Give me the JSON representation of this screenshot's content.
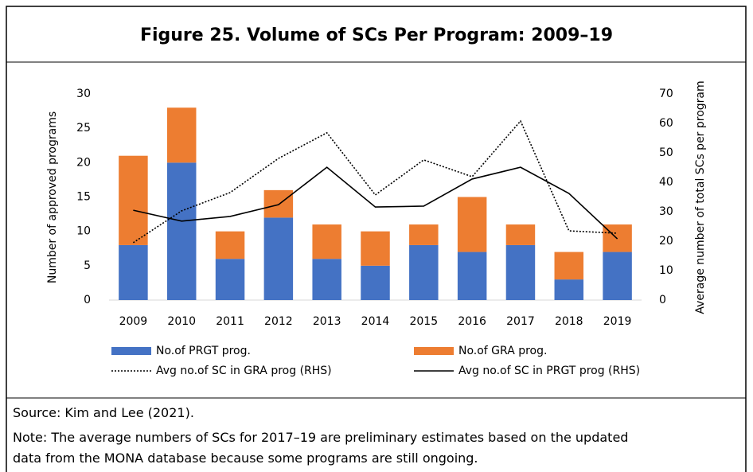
{
  "chart_data": {
    "type": "bar",
    "stacked": true,
    "title": "Figure 25. Volume of SCs Per Program: 2009–19",
    "categories": [
      "2009",
      "2010",
      "2011",
      "2012",
      "2013",
      "2014",
      "2015",
      "2016",
      "2017",
      "2018",
      "2019"
    ],
    "series": [
      {
        "name": "No.of PRGT prog.",
        "color": "#4472c4",
        "values": [
          8,
          20,
          6,
          12,
          6,
          5,
          8,
          7,
          8,
          3,
          7
        ]
      },
      {
        "name": "No.of GRA prog.",
        "color": "#ed7d31",
        "values": [
          13,
          8,
          4,
          4,
          5,
          5,
          3,
          8,
          3,
          4,
          4
        ]
      },
      {
        "name": "Avg no.of SC in GRA prog (RHS)",
        "type": "line",
        "style": "dotted",
        "axis": "y2",
        "color": "#000000",
        "values": [
          19.5,
          30.3,
          36.5,
          48.1,
          56.8,
          35.7,
          47.6,
          41.9,
          60.8,
          23.5,
          22.7
        ]
      },
      {
        "name": "Avg no.of SC in PRGT prog (RHS)",
        "type": "line",
        "style": "solid",
        "axis": "y2",
        "color": "#000000",
        "values": [
          30.5,
          26.8,
          28.4,
          32.4,
          45.1,
          31.6,
          31.9,
          41.1,
          45.1,
          36.2,
          20.8
        ]
      }
    ],
    "ylabel": "Number of approved programs",
    "y2label": "Average number of total SCs per program",
    "ylim": [
      0,
      30
    ],
    "yticks": [
      0,
      5,
      10,
      15,
      20,
      25,
      30
    ],
    "y2lim": [
      0,
      70
    ],
    "y2ticks": [
      0,
      10,
      20,
      30,
      40,
      50,
      60,
      70
    ]
  },
  "source": "Source: Kim and Lee (2021).",
  "note": "Note: The average numbers of SCs for 2017–19 are preliminary estimates based on the updated data from the MONA database because some programs are still ongoing."
}
